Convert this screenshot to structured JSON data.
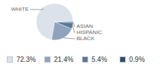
{
  "chart_data": {
    "type": "pie",
    "categories": [
      "WHITE",
      "BLACK",
      "HISPANIC",
      "ASIAN"
    ],
    "values": [
      72.3,
      21.4,
      5.4,
      0.9
    ],
    "value_labels": [
      "72.3%",
      "21.4%",
      "5.4%",
      "0.9%"
    ],
    "colors": [
      "#dce2ea",
      "#8ea3bd",
      "#5b7896",
      "#2d4d6f"
    ],
    "legend": "bottom"
  }
}
